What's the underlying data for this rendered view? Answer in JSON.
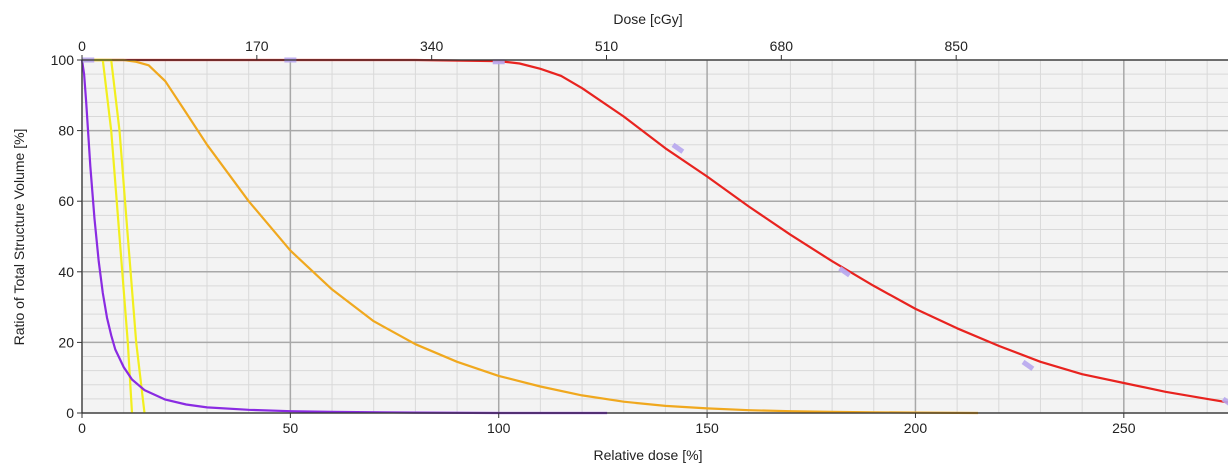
{
  "chart_data": {
    "type": "line",
    "top_axis": {
      "label": "Dose [cGy]",
      "ticks": [
        0,
        170,
        340,
        510,
        680,
        850
      ],
      "range": [
        0,
        1114.3
      ]
    },
    "xlabel": "Relative dose [%]",
    "ylabel": "Ratio of Total Structure Volume [%]",
    "xticks": [
      0,
      50,
      100,
      150,
      200,
      250
    ],
    "yticks": [
      0,
      20,
      40,
      60,
      80,
      100
    ],
    "xlim": [
      0,
      275
    ],
    "ylim": [
      0,
      100
    ],
    "grid": true,
    "series": [
      {
        "color": "#e8231f",
        "x": [
          0,
          20,
          50,
          80,
          100,
          105,
          110,
          115,
          120,
          130,
          140,
          150,
          160,
          170,
          180,
          190,
          200,
          210,
          220,
          230,
          240,
          250,
          260,
          270,
          275
        ],
        "y": [
          100,
          100,
          100,
          100,
          99.7,
          99,
          97.5,
          95.5,
          92,
          84,
          75,
          67,
          58.5,
          50.5,
          43,
          36,
          29.5,
          24,
          19,
          14.5,
          11,
          8.5,
          6,
          4,
          3
        ],
        "markers_x": [
          50,
          100,
          143,
          183,
          227,
          275
        ],
        "markers_y": [
          100,
          99.5,
          75,
          40,
          13.5,
          3
        ]
      },
      {
        "color": "#f0a81e",
        "x": [
          0,
          10,
          13,
          16,
          20,
          25,
          30,
          40,
          50,
          60,
          70,
          80,
          90,
          100,
          110,
          120,
          130,
          140,
          150,
          160,
          170,
          180,
          190,
          200,
          215
        ],
        "y": [
          100,
          100,
          99.5,
          98.5,
          94,
          85,
          76,
          60,
          46,
          35,
          26,
          19.5,
          14.5,
          10.5,
          7.5,
          5,
          3.2,
          2,
          1.3,
          0.8,
          0.5,
          0.3,
          0.2,
          0.1,
          0
        ],
        "markers_x": [],
        "markers_y": []
      },
      {
        "color": "#f2ef1e",
        "x": [
          0,
          7,
          9,
          11,
          13,
          15
        ],
        "y": [
          100,
          100,
          80,
          50,
          20,
          0
        ],
        "markers_x": [],
        "markers_y": []
      },
      {
        "color": "#f2ef1e",
        "x": [
          0,
          5,
          7,
          9,
          11,
          12
        ],
        "y": [
          100,
          100,
          80,
          50,
          20,
          0
        ],
        "markers_x": [],
        "markers_y": []
      },
      {
        "color": "#8a2be2",
        "x": [
          0,
          0.5,
          1,
          2,
          3,
          4,
          5,
          6,
          7,
          8,
          10,
          12,
          15,
          20,
          25,
          30,
          40,
          50,
          60,
          80,
          100,
          126
        ],
        "y": [
          100,
          96,
          88,
          70,
          55,
          43,
          34,
          27,
          22,
          18,
          13,
          9.5,
          6.5,
          3.8,
          2.4,
          1.6,
          0.9,
          0.5,
          0.3,
          0.1,
          0,
          0
        ],
        "markers_x": [
          1.5
        ],
        "markers_y": [
          100
        ]
      }
    ]
  }
}
